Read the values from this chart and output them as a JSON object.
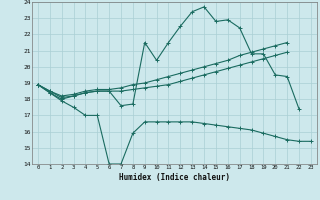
{
  "xlabel": "Humidex (Indice chaleur)",
  "background_color": "#cde8ec",
  "line_color": "#1a6b60",
  "grid_color": "#aacfd5",
  "x_values": [
    0,
    1,
    2,
    3,
    4,
    5,
    6,
    7,
    8,
    9,
    10,
    11,
    12,
    13,
    14,
    15,
    16,
    17,
    18,
    19,
    20,
    21,
    22,
    23
  ],
  "line_bottom_y": [
    18.9,
    18.4,
    17.9,
    17.5,
    17.0,
    17.0,
    14.0,
    14.0,
    15.9,
    16.6,
    16.6,
    16.6,
    16.6,
    16.6,
    16.5,
    16.4,
    16.3,
    16.2,
    16.1,
    15.9,
    15.7,
    15.5,
    15.4,
    15.4
  ],
  "line_top_y": [
    18.9,
    18.4,
    18.0,
    18.2,
    18.4,
    18.5,
    18.5,
    17.6,
    17.7,
    21.5,
    20.4,
    21.5,
    22.5,
    23.4,
    23.7,
    22.8,
    22.9,
    22.4,
    20.8,
    20.8,
    19.5,
    19.4,
    17.4,
    null
  ],
  "line_mid1_y": [
    18.9,
    18.5,
    18.1,
    18.2,
    18.4,
    18.5,
    18.5,
    18.5,
    18.6,
    18.7,
    18.8,
    18.9,
    19.1,
    19.3,
    19.5,
    19.7,
    19.9,
    20.1,
    20.3,
    20.5,
    20.7,
    20.9,
    null,
    null
  ],
  "line_mid2_y": [
    18.9,
    18.5,
    18.2,
    18.3,
    18.5,
    18.6,
    18.6,
    18.7,
    18.9,
    19.0,
    19.2,
    19.4,
    19.6,
    19.8,
    20.0,
    20.2,
    20.4,
    20.7,
    20.9,
    21.1,
    21.3,
    21.5,
    null,
    null
  ],
  "ylim": [
    14,
    24
  ],
  "xlim": [
    -0.5,
    23.5
  ],
  "yticks": [
    14,
    15,
    16,
    17,
    18,
    19,
    20,
    21,
    22,
    23,
    24
  ],
  "xticks": [
    0,
    1,
    2,
    3,
    4,
    5,
    6,
    7,
    8,
    9,
    10,
    11,
    12,
    13,
    14,
    15,
    16,
    17,
    18,
    19,
    20,
    21,
    22,
    23
  ]
}
